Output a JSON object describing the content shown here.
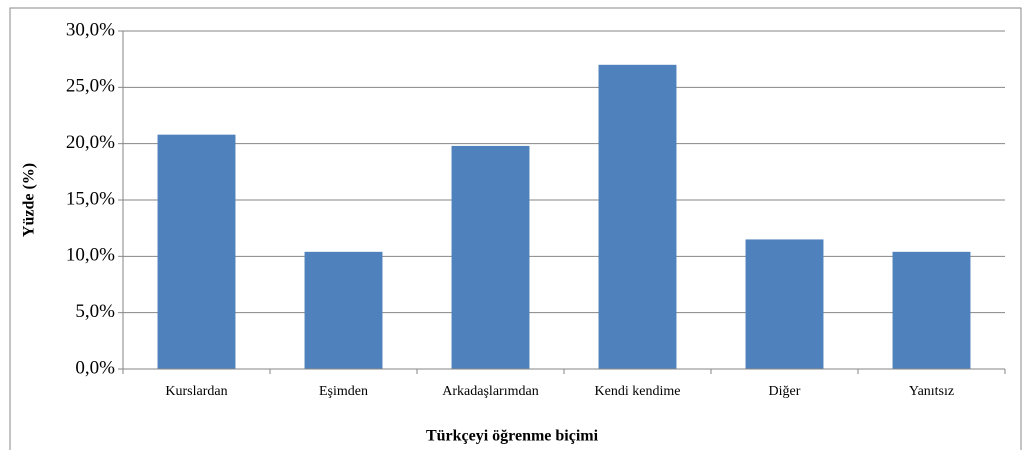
{
  "chart_data": {
    "type": "bar",
    "categories": [
      "Kurslardan",
      "Eşimden",
      "Arkadaşlarımdan",
      "Kendi kendime",
      "Diğer",
      "Yanıtsız"
    ],
    "values": [
      20.8,
      10.4,
      19.8,
      27.0,
      11.5,
      10.4
    ],
    "color": "#4f81bd",
    "xlabel": "Türkçeyi öğrenme biçimi",
    "ylabel": "Yüzde (%)",
    "ylim": [
      0,
      30
    ],
    "yticks": [
      {
        "value": 0,
        "label": "0,0%"
      },
      {
        "value": 5,
        "label": "5,0%"
      },
      {
        "value": 10,
        "label": "10,0%"
      },
      {
        "value": 15,
        "label": "15,0%"
      },
      {
        "value": 20,
        "label": "20,0%"
      },
      {
        "value": 25,
        "label": "25,0%"
      },
      {
        "value": 30,
        "label": "30,0%"
      }
    ],
    "grid": true
  }
}
